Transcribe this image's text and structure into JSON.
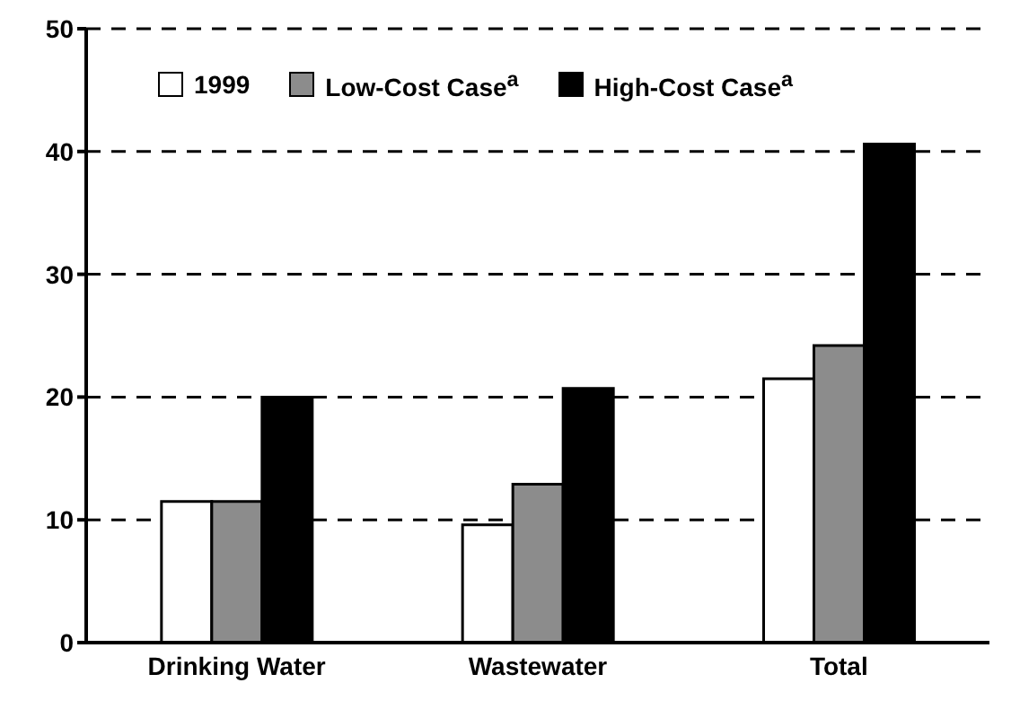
{
  "chart_data": {
    "type": "bar",
    "categories": [
      "Drinking Water",
      "Wastewater",
      "Total"
    ],
    "series": [
      {
        "name": "1999",
        "color": "#ffffff",
        "values": [
          11.5,
          9.6,
          21.5
        ]
      },
      {
        "name": "Low-Cost Case$^{a}$",
        "color": "#8c8c8c",
        "values": [
          11.5,
          12.9,
          24.2
        ]
      },
      {
        "name": "High-Cost Case$^{a}$",
        "color": "#000000",
        "values": [
          20,
          20.7,
          40.6
        ]
      }
    ],
    "ylim": [
      0,
      50
    ],
    "yticks": [
      0,
      10,
      20,
      30,
      40,
      50
    ],
    "grid": "y",
    "legend": "top left"
  }
}
